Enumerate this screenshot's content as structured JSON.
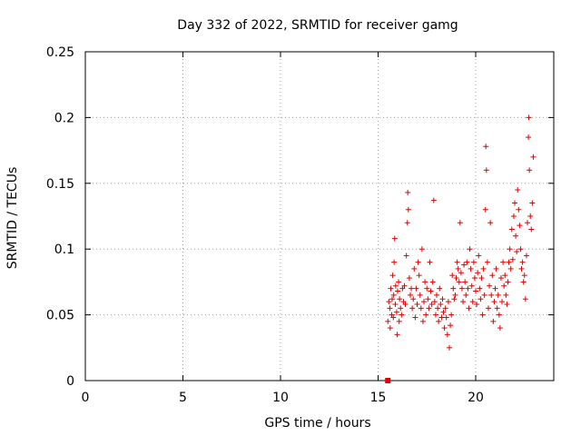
{
  "chart_data": {
    "type": "scatter",
    "title": "Day 332 of 2022, SRMTID for receiver gamg",
    "xlabel": "GPS time / hours",
    "ylabel": "SRMTID / TECUs",
    "xlim": [
      0,
      24
    ],
    "ylim": [
      0,
      0.25
    ],
    "xticks": [
      0,
      5,
      10,
      15,
      20
    ],
    "yticks": [
      0,
      0.05,
      0.1,
      0.15,
      0.2,
      0.25
    ],
    "grid": true,
    "marker": "+",
    "color": "#e00000",
    "marker_note": "small filled square near x=15.5, y=0",
    "series": [
      {
        "name": "SRMTID",
        "points": [
          [
            15.5,
            0.045
          ],
          [
            15.55,
            0.06
          ],
          [
            15.6,
            0.055
          ],
          [
            15.62,
            0.04
          ],
          [
            15.65,
            0.07
          ],
          [
            15.7,
            0.05
          ],
          [
            15.72,
            0.062
          ],
          [
            15.75,
            0.08
          ],
          [
            15.78,
            0.048
          ],
          [
            15.8,
            0.065
          ],
          [
            15.82,
            0.09
          ],
          [
            15.85,
            0.108
          ],
          [
            15.88,
            0.058
          ],
          [
            15.9,
            0.072
          ],
          [
            15.95,
            0.052
          ],
          [
            15.98,
            0.035
          ],
          [
            16.0,
            0.068
          ],
          [
            16.05,
            0.075
          ],
          [
            16.08,
            0.045
          ],
          [
            16.1,
            0.062
          ],
          [
            16.15,
            0.055
          ],
          [
            16.2,
            0.05
          ],
          [
            16.25,
            0.07
          ],
          [
            16.3,
            0.06
          ],
          [
            16.35,
            0.072
          ],
          [
            16.4,
            0.058
          ],
          [
            16.45,
            0.095
          ],
          [
            16.5,
            0.12
          ],
          [
            16.52,
            0.143
          ],
          [
            16.55,
            0.13
          ],
          [
            16.6,
            0.078
          ],
          [
            16.65,
            0.065
          ],
          [
            16.7,
            0.07
          ],
          [
            16.75,
            0.055
          ],
          [
            16.8,
            0.062
          ],
          [
            16.85,
            0.085
          ],
          [
            16.9,
            0.048
          ],
          [
            16.95,
            0.07
          ],
          [
            17.0,
            0.058
          ],
          [
            17.05,
            0.09
          ],
          [
            17.1,
            0.08
          ],
          [
            17.15,
            0.065
          ],
          [
            17.2,
            0.055
          ],
          [
            17.25,
            0.1
          ],
          [
            17.3,
            0.045
          ],
          [
            17.35,
            0.06
          ],
          [
            17.4,
            0.075
          ],
          [
            17.45,
            0.05
          ],
          [
            17.5,
            0.07
          ],
          [
            17.55,
            0.062
          ],
          [
            17.6,
            0.055
          ],
          [
            17.65,
            0.09
          ],
          [
            17.7,
            0.068
          ],
          [
            17.75,
            0.058
          ],
          [
            17.8,
            0.075
          ],
          [
            17.85,
            0.137
          ],
          [
            17.9,
            0.06
          ],
          [
            17.95,
            0.05
          ],
          [
            18.0,
            0.065
          ],
          [
            18.05,
            0.055
          ],
          [
            18.1,
            0.045
          ],
          [
            18.15,
            0.07
          ],
          [
            18.2,
            0.058
          ],
          [
            18.25,
            0.048
          ],
          [
            18.3,
            0.062
          ],
          [
            18.35,
            0.052
          ],
          [
            18.4,
            0.04
          ],
          [
            18.45,
            0.055
          ],
          [
            18.5,
            0.048
          ],
          [
            18.55,
            0.035
          ],
          [
            18.6,
            0.06
          ],
          [
            18.65,
            0.025
          ],
          [
            18.7,
            0.042
          ],
          [
            18.75,
            0.05
          ],
          [
            18.8,
            0.08
          ],
          [
            18.85,
            0.07
          ],
          [
            18.9,
            0.062
          ],
          [
            18.95,
            0.065
          ],
          [
            19.0,
            0.078
          ],
          [
            19.05,
            0.09
          ],
          [
            19.1,
            0.085
          ],
          [
            19.15,
            0.075
          ],
          [
            19.2,
            0.12
          ],
          [
            19.25,
            0.082
          ],
          [
            19.3,
            0.07
          ],
          [
            19.35,
            0.06
          ],
          [
            19.4,
            0.088
          ],
          [
            19.45,
            0.075
          ],
          [
            19.5,
            0.065
          ],
          [
            19.55,
            0.09
          ],
          [
            19.6,
            0.07
          ],
          [
            19.65,
            0.055
          ],
          [
            19.7,
            0.1
          ],
          [
            19.75,
            0.085
          ],
          [
            19.8,
            0.072
          ],
          [
            19.85,
            0.06
          ],
          [
            19.9,
            0.09
          ],
          [
            19.95,
            0.078
          ],
          [
            20.0,
            0.068
          ],
          [
            20.05,
            0.058
          ],
          [
            20.1,
            0.082
          ],
          [
            20.15,
            0.095
          ],
          [
            20.2,
            0.07
          ],
          [
            20.25,
            0.062
          ],
          [
            20.3,
            0.078
          ],
          [
            20.35,
            0.05
          ],
          [
            20.4,
            0.085
          ],
          [
            20.45,
            0.065
          ],
          [
            20.5,
            0.13
          ],
          [
            20.52,
            0.178
          ],
          [
            20.55,
            0.16
          ],
          [
            20.6,
            0.09
          ],
          [
            20.65,
            0.055
          ],
          [
            20.7,
            0.072
          ],
          [
            20.75,
            0.12
          ],
          [
            20.8,
            0.065
          ],
          [
            20.85,
            0.08
          ],
          [
            20.9,
            0.045
          ],
          [
            20.95,
            0.06
          ],
          [
            21.0,
            0.07
          ],
          [
            21.05,
            0.085
          ],
          [
            21.1,
            0.055
          ],
          [
            21.15,
            0.065
          ],
          [
            21.2,
            0.05
          ],
          [
            21.25,
            0.04
          ],
          [
            21.3,
            0.078
          ],
          [
            21.35,
            0.06
          ],
          [
            21.4,
            0.09
          ],
          [
            21.45,
            0.072
          ],
          [
            21.5,
            0.08
          ],
          [
            21.55,
            0.065
          ],
          [
            21.6,
            0.058
          ],
          [
            21.65,
            0.075
          ],
          [
            21.7,
            0.09
          ],
          [
            21.75,
            0.1
          ],
          [
            21.8,
            0.085
          ],
          [
            21.85,
            0.115
          ],
          [
            21.9,
            0.092
          ],
          [
            21.95,
            0.125
          ],
          [
            22.0,
            0.135
          ],
          [
            22.05,
            0.11
          ],
          [
            22.1,
            0.098
          ],
          [
            22.15,
            0.145
          ],
          [
            22.2,
            0.13
          ],
          [
            22.25,
            0.118
          ],
          [
            22.3,
            0.1
          ],
          [
            22.35,
            0.085
          ],
          [
            22.4,
            0.09
          ],
          [
            22.45,
            0.075
          ],
          [
            22.5,
            0.08
          ],
          [
            22.55,
            0.062
          ],
          [
            22.6,
            0.095
          ],
          [
            22.65,
            0.12
          ],
          [
            22.7,
            0.185
          ],
          [
            22.72,
            0.2
          ],
          [
            22.75,
            0.16
          ],
          [
            22.8,
            0.125
          ],
          [
            22.85,
            0.115
          ],
          [
            22.9,
            0.135
          ],
          [
            22.95,
            0.17
          ]
        ]
      }
    ]
  }
}
